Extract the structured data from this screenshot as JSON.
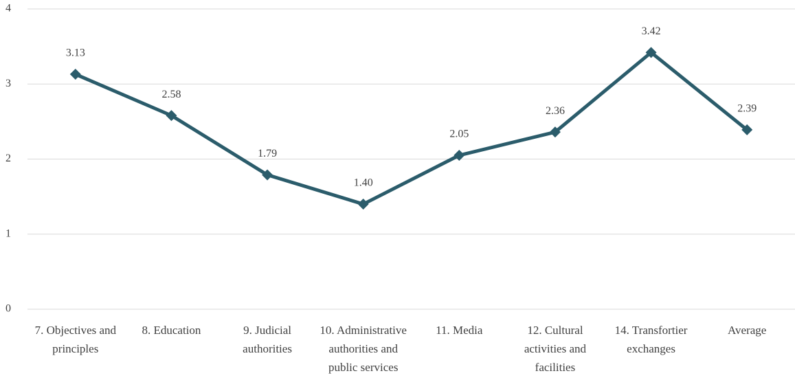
{
  "chart_data": {
    "type": "line",
    "categories": [
      "7. Objectives and principles",
      "8. Education",
      "9. Judicial authorities",
      "10. Administrative authorities and public services",
      "11. Media",
      "12. Cultural activities and facilities",
      "14. Transfortier exchanges",
      "Average"
    ],
    "values": [
      3.13,
      2.58,
      1.79,
      1.4,
      2.05,
      2.36,
      3.42,
      2.39
    ],
    "value_labels": [
      "3.13",
      "2.58",
      "1.79",
      "1.40",
      "2.05",
      "2.36",
      "3.42",
      "2.39"
    ],
    "color": "#2b5c6b",
    "ylim": [
      0,
      4
    ],
    "yticks": [
      0,
      1,
      2,
      3,
      4
    ],
    "grid": true
  }
}
